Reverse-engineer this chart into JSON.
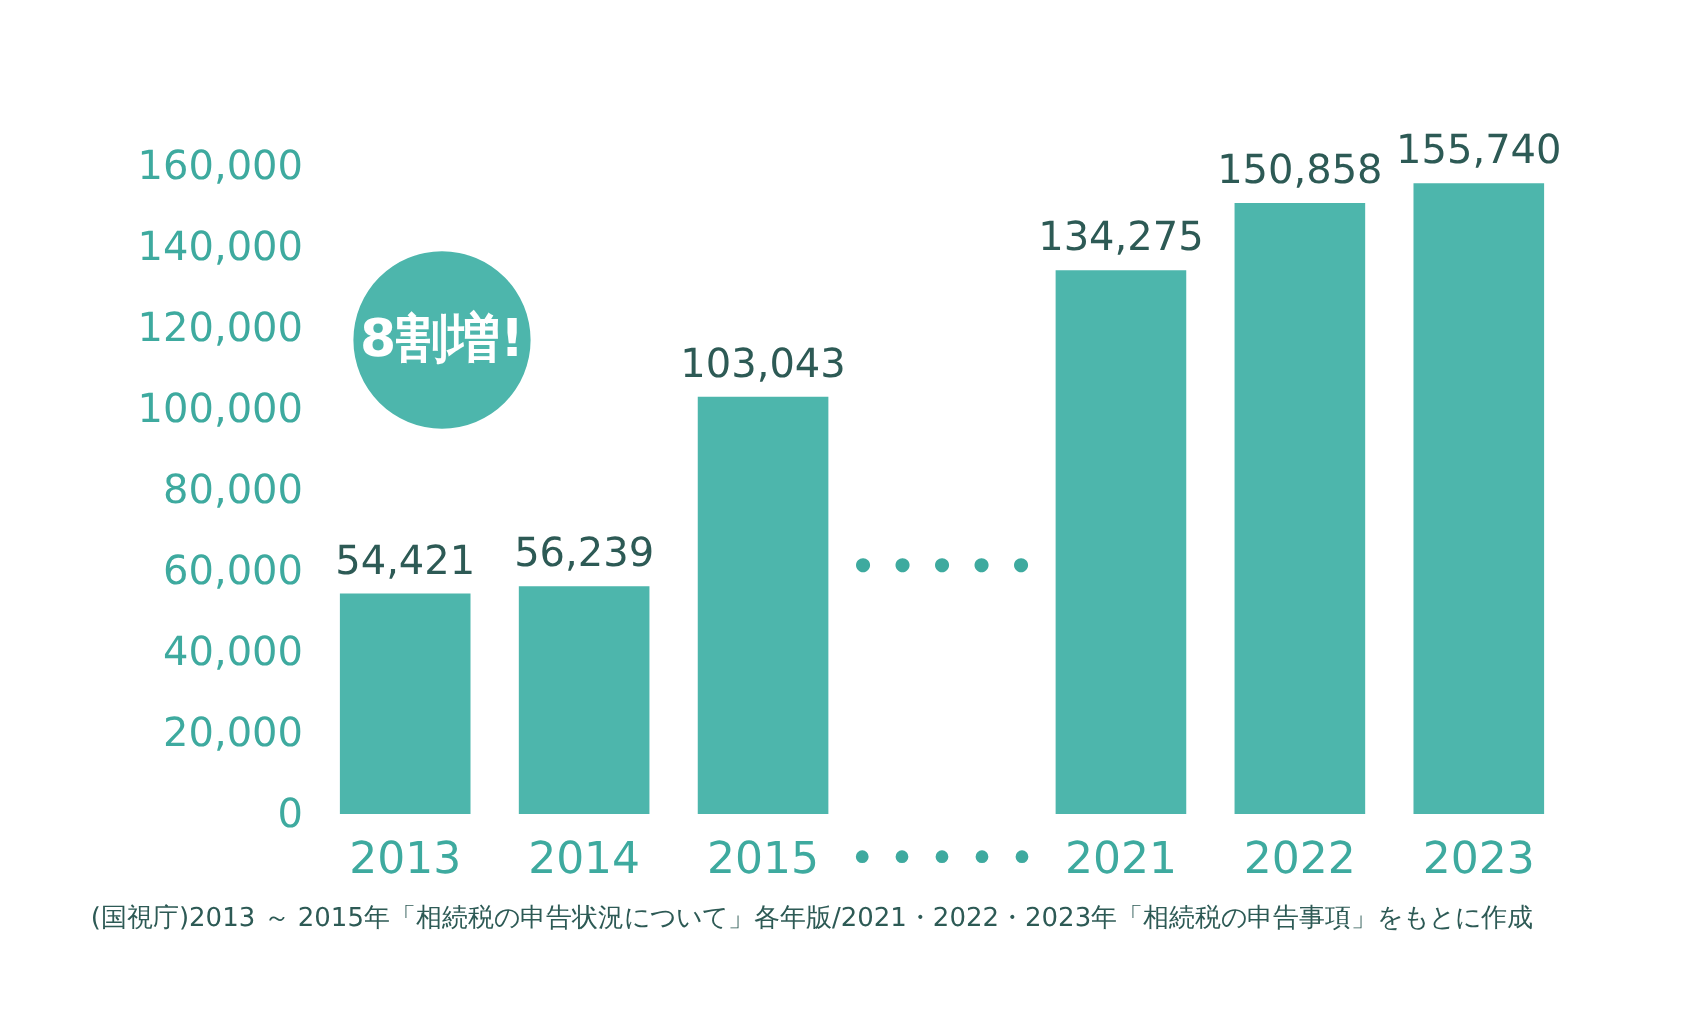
{
  "chart_data": {
    "type": "bar",
    "categories": [
      "2013",
      "2014",
      "2015",
      "• • • • •",
      "2021",
      "2022",
      "2023"
    ],
    "values": [
      54421,
      56239,
      103043,
      null,
      134275,
      150858,
      155740
    ],
    "value_labels": [
      "54,421",
      "56,239",
      "103,043",
      null,
      "134,275",
      "150,858",
      "155,740"
    ],
    "color": "#4db6ac",
    "ylim": [
      0,
      160000
    ],
    "yticks": [
      0,
      {
        "value": 20000,
        "label": "20,000"
      },
      {
        "value": 40000,
        "label": "40,000"
      },
      {
        "value": 60000,
        "label": "60,000"
      },
      {
        "value": 80000,
        "label": "80,000"
      },
      {
        "value": 100000,
        "label": "100,000"
      },
      {
        "value": 120000,
        "label": "120,000"
      },
      {
        "value": 140000,
        "label": "140,000"
      },
      {
        "value": 160000,
        "label": "160,000"
      }
    ],
    "grid": false,
    "annotations": [
      "8割増!",
      "• • • • •",
      "(国視庁)2013 ～ 2015年「相続税の申告状況について」各年版/2021・2022・2023年「相続税の申告事項」をもとに作成"
    ]
  }
}
